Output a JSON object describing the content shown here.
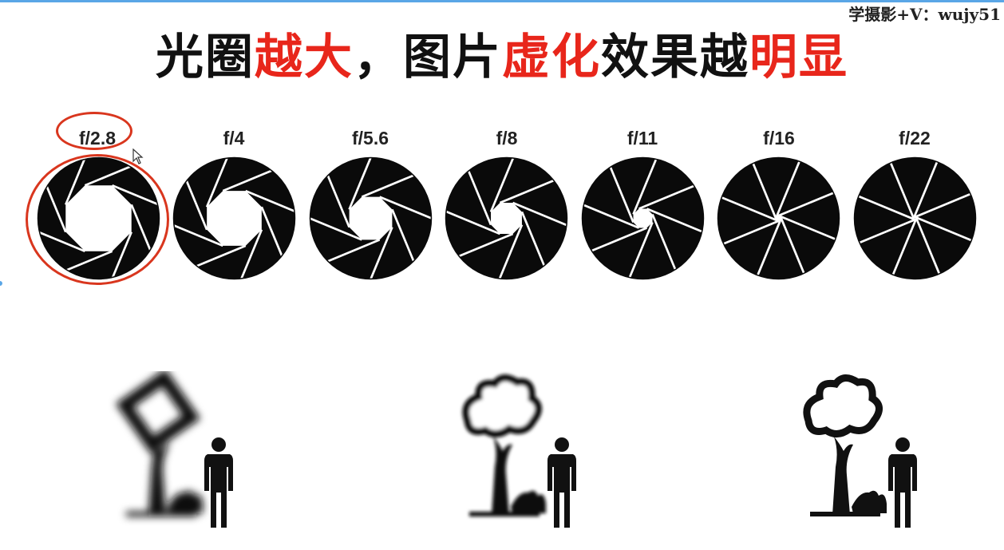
{
  "watermark": "学摄影+V：wujy51",
  "title": {
    "parts": [
      {
        "text": "光圈",
        "color": "#111111"
      },
      {
        "text": "越大",
        "color": "#e8261b"
      },
      {
        "text": "，图片",
        "color": "#111111"
      },
      {
        "text": "虚化",
        "color": "#e8261b"
      },
      {
        "text": "效果越",
        "color": "#111111"
      },
      {
        "text": "明显",
        "color": "#e8261b"
      }
    ]
  },
  "apertures": [
    {
      "label": "f/2.8",
      "open_fraction": 0.72,
      "highlighted": true
    },
    {
      "label": "f/4",
      "open_fraction": 0.6,
      "highlighted": false
    },
    {
      "label": "f/5.6",
      "open_fraction": 0.47,
      "highlighted": false
    },
    {
      "label": "f/8",
      "open_fraction": 0.34,
      "highlighted": false
    },
    {
      "label": "f/11",
      "open_fraction": 0.21,
      "highlighted": false
    },
    {
      "label": "f/16",
      "open_fraction": 0.05,
      "highlighted": false
    },
    {
      "label": "f/22",
      "open_fraction": 0.02,
      "highlighted": false
    }
  ],
  "scenes": [
    {
      "name": "large-aperture-scene",
      "blur": "strong"
    },
    {
      "name": "medium-aperture-scene",
      "blur": "medium"
    },
    {
      "name": "small-aperture-scene",
      "blur": "none"
    }
  ],
  "colors": {
    "accent_red": "#e8261b",
    "highlight_ring": "#d9361e",
    "frame": "#5aa6e6"
  }
}
